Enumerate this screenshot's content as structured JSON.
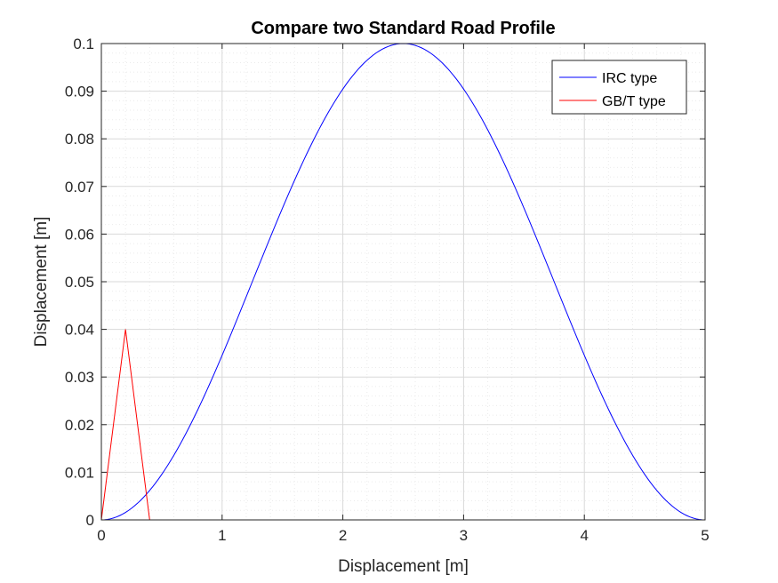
{
  "colors": {
    "background": "#ffffff",
    "axes": "#262626",
    "major_grid": "#d9d9d9",
    "minor_grid": "#ebebeb",
    "legend_border": "#262626"
  },
  "chart_data": {
    "type": "line",
    "title": "Compare two Standard Road Profile",
    "xlabel": "Displacement [m]",
    "ylabel": "Displacement [m]",
    "xlim": [
      0,
      5
    ],
    "ylim": [
      0,
      0.1
    ],
    "xticks": [
      0,
      1,
      2,
      3,
      4,
      5
    ],
    "xtick_labels": [
      "0",
      "1",
      "2",
      "3",
      "4",
      "5"
    ],
    "yticks": [
      0,
      0.01,
      0.02,
      0.03,
      0.04,
      0.05,
      0.06,
      0.07,
      0.08,
      0.09,
      0.1
    ],
    "ytick_labels": [
      "0",
      "0.01",
      "0.02",
      "0.03",
      "0.04",
      "0.05",
      "0.06",
      "0.07",
      "0.08",
      "0.09",
      "0.1"
    ],
    "grid": "on",
    "minor_grid": "on",
    "legend_position": "top-right",
    "series": [
      {
        "name": "IRC type",
        "color": "#0000ff",
        "x": [
          0,
          0.25,
          0.5,
          0.75,
          1.0,
          1.25,
          1.5,
          1.75,
          2.0,
          2.25,
          2.5,
          2.75,
          3.0,
          3.25,
          3.5,
          3.75,
          4.0,
          4.25,
          4.5,
          4.75,
          5.0
        ],
        "y": [
          0,
          0.00245,
          0.00955,
          0.02061,
          0.03455,
          0.05,
          0.06545,
          0.07939,
          0.09045,
          0.09755,
          0.1,
          0.09755,
          0.09045,
          0.07939,
          0.06545,
          0.05,
          0.03455,
          0.02061,
          0.00955,
          0.00245,
          0
        ]
      },
      {
        "name": "GB/T type",
        "color": "#ff0000",
        "x": [
          0,
          0.2,
          0.4,
          5.0
        ],
        "y": [
          0,
          0.04,
          0,
          0
        ]
      }
    ]
  }
}
